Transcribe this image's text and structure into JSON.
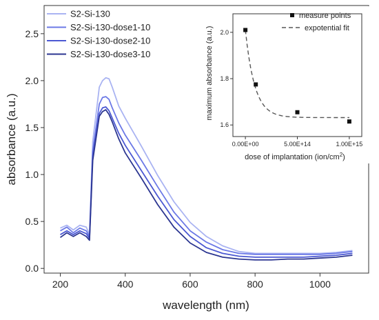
{
  "chart_data": [
    {
      "type": "line",
      "xlabel": "wavelength (nm)",
      "ylabel": "absorbance (a.u.)",
      "xlim": [
        150,
        1150
      ],
      "ylim": [
        -0.05,
        2.8
      ],
      "xticks": [
        200,
        400,
        600,
        800,
        1000
      ],
      "yticks": [
        0.0,
        0.5,
        1.0,
        1.5,
        2.0,
        2.5
      ],
      "xtick_labels": [
        "200",
        "400",
        "600",
        "800",
        "1000"
      ],
      "ytick_labels": [
        "0.0",
        "0.5",
        "1.0",
        "1.5",
        "2.0",
        "2.5"
      ],
      "grid": false,
      "legend_position": "top-left",
      "series": [
        {
          "name": "S2-Si-130",
          "color": "#a9b3f2",
          "x": [
            200,
            220,
            240,
            260,
            280,
            290,
            300,
            320,
            330,
            340,
            350,
            360,
            380,
            400,
            450,
            500,
            550,
            600,
            650,
            700,
            750,
            800,
            850,
            900,
            950,
            1000,
            1050,
            1100
          ],
          "y": [
            0.43,
            0.46,
            0.41,
            0.46,
            0.44,
            0.36,
            1.35,
            1.93,
            2.0,
            2.03,
            2.02,
            1.93,
            1.73,
            1.6,
            1.3,
            0.99,
            0.71,
            0.49,
            0.34,
            0.24,
            0.18,
            0.16,
            0.16,
            0.16,
            0.16,
            0.16,
            0.17,
            0.19
          ]
        },
        {
          "name": "S2-Si-130-dose1-10",
          "color": "#6b78e6",
          "x": [
            200,
            220,
            240,
            260,
            280,
            290,
            300,
            320,
            330,
            340,
            350,
            360,
            380,
            400,
            450,
            500,
            550,
            600,
            650,
            700,
            750,
            800,
            850,
            900,
            950,
            1000,
            1050,
            1100
          ],
          "y": [
            0.4,
            0.44,
            0.38,
            0.43,
            0.4,
            0.34,
            1.25,
            1.75,
            1.82,
            1.83,
            1.8,
            1.71,
            1.55,
            1.42,
            1.15,
            0.87,
            0.6,
            0.4,
            0.28,
            0.2,
            0.16,
            0.15,
            0.15,
            0.15,
            0.15,
            0.15,
            0.16,
            0.18
          ]
        },
        {
          "name": "S2-Si-130-dose2-10",
          "color": "#4a57d2",
          "x": [
            200,
            220,
            240,
            260,
            280,
            290,
            300,
            320,
            330,
            340,
            350,
            360,
            380,
            400,
            450,
            500,
            550,
            600,
            650,
            700,
            750,
            800,
            850,
            900,
            950,
            1000,
            1050,
            1100
          ],
          "y": [
            0.36,
            0.4,
            0.36,
            0.4,
            0.37,
            0.32,
            1.2,
            1.65,
            1.71,
            1.72,
            1.68,
            1.6,
            1.44,
            1.31,
            1.04,
            0.77,
            0.52,
            0.34,
            0.22,
            0.16,
            0.13,
            0.12,
            0.12,
            0.12,
            0.12,
            0.13,
            0.14,
            0.16
          ]
        },
        {
          "name": "S2-Si-130-dose3-10",
          "color": "#2b3590",
          "x": [
            200,
            220,
            240,
            260,
            280,
            290,
            300,
            320,
            330,
            340,
            350,
            360,
            380,
            400,
            450,
            500,
            550,
            600,
            650,
            700,
            750,
            800,
            850,
            900,
            950,
            1000,
            1050,
            1100
          ],
          "y": [
            0.33,
            0.38,
            0.34,
            0.38,
            0.34,
            0.3,
            1.15,
            1.62,
            1.67,
            1.69,
            1.64,
            1.56,
            1.38,
            1.23,
            0.96,
            0.68,
            0.44,
            0.27,
            0.17,
            0.12,
            0.1,
            0.09,
            0.09,
            0.1,
            0.1,
            0.11,
            0.12,
            0.14
          ]
        }
      ]
    },
    {
      "type": "scatter",
      "xlabel_main": "dose of implantation (ion/cm",
      "xlabel_sup": "2",
      "xlabel_end": ")",
      "ylabel": "maximum absorbance (a.u.)",
      "xlim": [
        -120000000000000.0,
        1120000000000000.0
      ],
      "ylim": [
        1.55,
        2.08
      ],
      "xticks": [
        0,
        500000000000000.0,
        1000000000000000.0
      ],
      "yticks": [
        1.6,
        1.8,
        2.0
      ],
      "xtick_labels": [
        "0.00E+00",
        "5.00E+14",
        "1.00E+15"
      ],
      "ytick_labels": [
        "1.6",
        "1.8",
        "2.0"
      ],
      "legend_position": "top-right",
      "points": {
        "name": "measure points",
        "color": "#111111",
        "x": [
          0,
          100000000000000.0,
          500000000000000.0,
          1000000000000000.0
        ],
        "y": [
          2.01,
          1.775,
          1.655,
          1.615
        ]
      },
      "fit": {
        "name": "expotential fit",
        "color": "#555555",
        "y0": 1.632,
        "A": 0.378,
        "tau": 90000000000000.0,
        "x_range": [
          0,
          1000000000000000.0
        ]
      }
    }
  ]
}
